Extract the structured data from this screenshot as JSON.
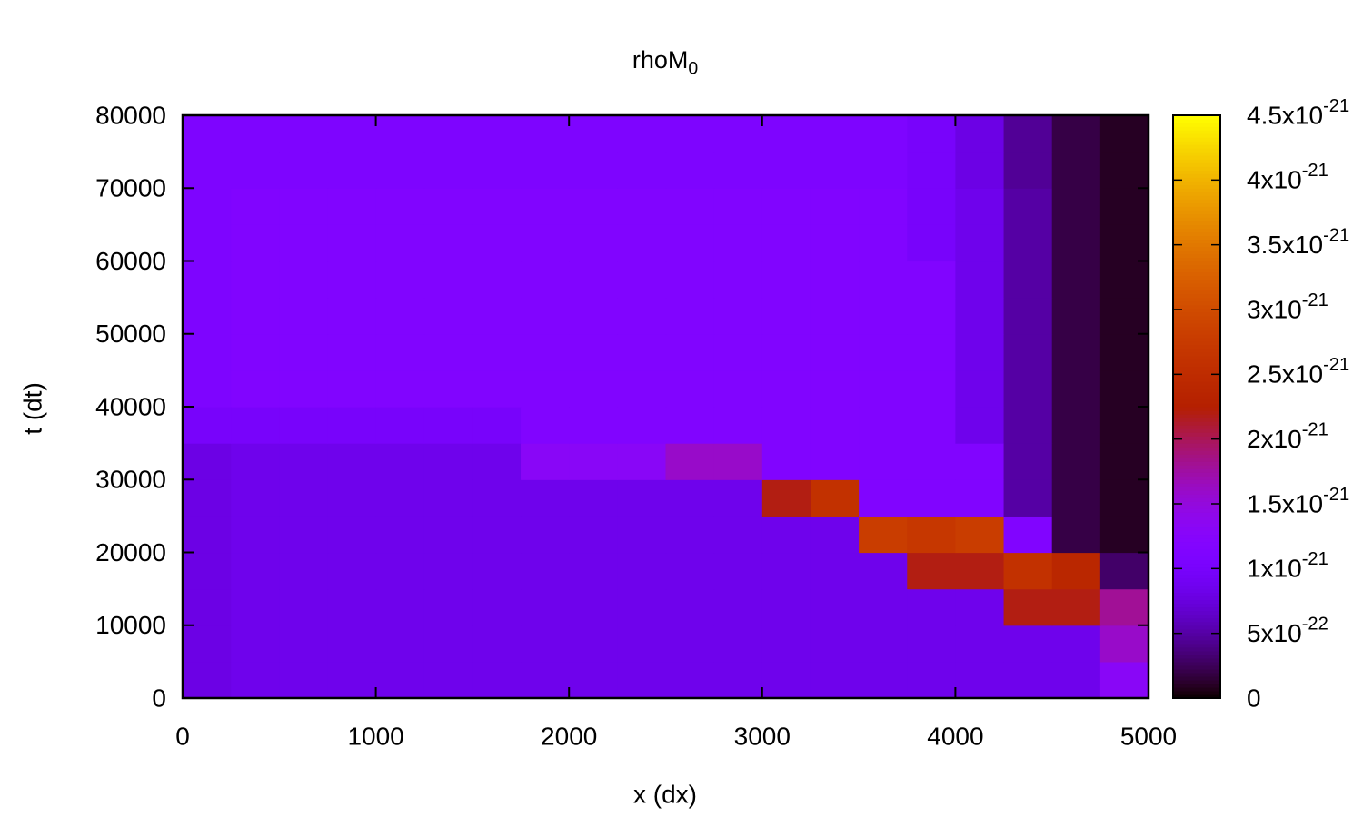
{
  "chart_data": {
    "type": "heatmap",
    "title": "rhoM_0",
    "x_label": "x (dx)",
    "y_label": "t (dt)",
    "xlim": [
      0,
      5000
    ],
    "xticks": [
      0,
      1000,
      2000,
      3000,
      4000,
      5000
    ],
    "ylim": [
      0,
      80000
    ],
    "yticks": [
      0,
      10000,
      20000,
      30000,
      40000,
      50000,
      60000,
      70000,
      80000
    ],
    "cblim": [
      0,
      4.5e-21
    ],
    "cbticks": [
      0,
      {
        "value": 5e-22,
        "label": "5x10^-22"
      },
      {
        "value": 1e-21,
        "label": "1x10^-21"
      },
      {
        "value": 1.5e-21,
        "label": "1.5x10^-21"
      },
      {
        "value": 2e-21,
        "label": "2x10^-21"
      },
      {
        "value": 2.5e-21,
        "label": "2.5x10^-21"
      },
      {
        "value": 3e-21,
        "label": "3x10^-21"
      },
      {
        "value": 3.5e-21,
        "label": "3.5x10^-21"
      },
      {
        "value": 4e-21,
        "label": "4x10^-21"
      },
      {
        "value": 4.5e-21,
        "label": "4.5x10^-21"
      }
    ],
    "rgbformulae": [
      7,
      5,
      15
    ],
    "x": [
      0,
      250,
      500,
      750,
      1000,
      1250,
      1500,
      1750,
      2000,
      2250,
      2500,
      2750,
      3000,
      3250,
      3500,
      3750,
      4000,
      4250,
      4500,
      4750,
      5000
    ],
    "y": [
      0,
      5000,
      10000,
      15000,
      20000,
      25000,
      30000,
      35000,
      40000,
      45000,
      50000,
      55000,
      60000,
      65000,
      70000,
      75000,
      80000
    ],
    "z": [
      [
        8e-22,
        8.5e-22,
        8.5e-22,
        8.5e-22,
        8.5e-22,
        8.5e-22,
        8.5e-22,
        8.5e-22,
        8.5e-22,
        8.5e-22,
        8.5e-22,
        8.5e-22,
        8.5e-22,
        8.5e-22,
        8.5e-22,
        8.5e-22,
        8.5e-22,
        8.5e-22,
        8.5e-22,
        1.3e-21
      ],
      [
        8e-22,
        8.5e-22,
        8.5e-22,
        8.5e-22,
        8.5e-22,
        8.5e-22,
        8.5e-22,
        8.5e-22,
        8.5e-22,
        8.5e-22,
        8.5e-22,
        8.5e-22,
        8.5e-22,
        8.5e-22,
        8.5e-22,
        8.5e-22,
        8.5e-22,
        8.5e-22,
        8.5e-22,
        1.6e-21
      ],
      [
        8e-22,
        8.5e-22,
        8.5e-22,
        8.5e-22,
        8.5e-22,
        8.5e-22,
        8.5e-22,
        8.5e-22,
        8.5e-22,
        8.5e-22,
        8.5e-22,
        8.5e-22,
        8.5e-22,
        8.5e-22,
        8.5e-22,
        8.5e-22,
        8.5e-22,
        2.2e-21,
        2.2e-21,
        1.8e-21
      ],
      [
        8e-22,
        8.5e-22,
        8.5e-22,
        8.5e-22,
        8.5e-22,
        8.5e-22,
        8.5e-22,
        8.5e-22,
        8.5e-22,
        8.5e-22,
        8.5e-22,
        8.5e-22,
        8.5e-22,
        8.5e-22,
        8.5e-22,
        2.2e-21,
        2.2e-21,
        2.6e-21,
        2.4e-21,
        3e-22
      ],
      [
        8e-22,
        8.5e-22,
        8.5e-22,
        8.5e-22,
        8.5e-22,
        8.5e-22,
        8.5e-22,
        8.5e-22,
        8.5e-22,
        8.5e-22,
        8.5e-22,
        8.5e-22,
        8.5e-22,
        8.5e-22,
        2.8e-21,
        2.7e-21,
        2.8e-21,
        1.15e-21,
        2e-22,
        1e-22
      ],
      [
        8e-22,
        8.5e-22,
        8.5e-22,
        8.5e-22,
        8.5e-22,
        8.5e-22,
        8.5e-22,
        8.5e-22,
        8.5e-22,
        8.5e-22,
        8.5e-22,
        8.5e-22,
        2.2e-21,
        2.6e-21,
        1.15e-21,
        1.15e-21,
        1.15e-21,
        5e-22,
        2e-22,
        1e-22
      ],
      [
        8e-22,
        8.5e-22,
        8.5e-22,
        8.5e-22,
        8.5e-22,
        8.5e-22,
        8.5e-22,
        1.3e-21,
        1.3e-21,
        1.3e-21,
        1.6e-21,
        1.6e-21,
        1.15e-21,
        1.15e-21,
        1.15e-21,
        1.15e-21,
        1.15e-21,
        5e-22,
        2e-22,
        1e-22
      ],
      [
        1e-21,
        1e-21,
        1e-21,
        1e-21,
        1e-21,
        1e-21,
        1e-21,
        1.15e-21,
        1.15e-21,
        1.15e-21,
        1.15e-21,
        1.15e-21,
        1.15e-21,
        1.15e-21,
        1.15e-21,
        1.15e-21,
        8.5e-22,
        5e-22,
        2e-22,
        1e-22
      ],
      [
        1.1e-21,
        1.15e-21,
        1.15e-21,
        1.15e-21,
        1.15e-21,
        1.15e-21,
        1.15e-21,
        1.15e-21,
        1.15e-21,
        1.15e-21,
        1.15e-21,
        1.15e-21,
        1.15e-21,
        1.15e-21,
        1.15e-21,
        1.15e-21,
        8.5e-22,
        5e-22,
        2e-22,
        1e-22
      ],
      [
        1.1e-21,
        1.15e-21,
        1.15e-21,
        1.15e-21,
        1.15e-21,
        1.15e-21,
        1.15e-21,
        1.15e-21,
        1.15e-21,
        1.15e-21,
        1.15e-21,
        1.15e-21,
        1.15e-21,
        1.15e-21,
        1.15e-21,
        1.15e-21,
        8.5e-22,
        5e-22,
        2e-22,
        1e-22
      ],
      [
        1.1e-21,
        1.15e-21,
        1.15e-21,
        1.15e-21,
        1.15e-21,
        1.15e-21,
        1.15e-21,
        1.15e-21,
        1.15e-21,
        1.15e-21,
        1.15e-21,
        1.15e-21,
        1.15e-21,
        1.15e-21,
        1.15e-21,
        1.15e-21,
        8.5e-22,
        5e-22,
        2e-22,
        1e-22
      ],
      [
        1.1e-21,
        1.15e-21,
        1.15e-21,
        1.15e-21,
        1.15e-21,
        1.15e-21,
        1.15e-21,
        1.15e-21,
        1.15e-21,
        1.15e-21,
        1.15e-21,
        1.15e-21,
        1.15e-21,
        1.15e-21,
        1.15e-21,
        1.15e-21,
        8.5e-22,
        5e-22,
        2e-22,
        1e-22
      ],
      [
        1.1e-21,
        1.15e-21,
        1.15e-21,
        1.15e-21,
        1.15e-21,
        1.15e-21,
        1.15e-21,
        1.15e-21,
        1.15e-21,
        1.15e-21,
        1.15e-21,
        1.15e-21,
        1.15e-21,
        1.15e-21,
        1.15e-21,
        1e-21,
        8.5e-22,
        5e-22,
        2e-22,
        1e-22
      ],
      [
        1.1e-21,
        1.15e-21,
        1.15e-21,
        1.15e-21,
        1.15e-21,
        1.15e-21,
        1.15e-21,
        1.15e-21,
        1.15e-21,
        1.15e-21,
        1.15e-21,
        1.15e-21,
        1.15e-21,
        1.15e-21,
        1.15e-21,
        1e-21,
        8.5e-22,
        5e-22,
        2e-22,
        1e-22
      ],
      [
        1.1e-21,
        1.1e-21,
        1.1e-21,
        1.1e-21,
        1.1e-21,
        1.1e-21,
        1.1e-21,
        1.1e-21,
        1.1e-21,
        1.1e-21,
        1.1e-21,
        1.1e-21,
        1.1e-21,
        1.1e-21,
        1.1e-21,
        1e-21,
        8e-22,
        4.5e-22,
        2e-22,
        1e-22
      ],
      [
        1.1e-21,
        1.1e-21,
        1.1e-21,
        1.1e-21,
        1.1e-21,
        1.1e-21,
        1.1e-21,
        1.1e-21,
        1.1e-21,
        1.1e-21,
        1.1e-21,
        1.1e-21,
        1.1e-21,
        1.1e-21,
        1.1e-21,
        1e-21,
        8e-22,
        4.5e-22,
        2e-22,
        1e-22
      ]
    ]
  }
}
